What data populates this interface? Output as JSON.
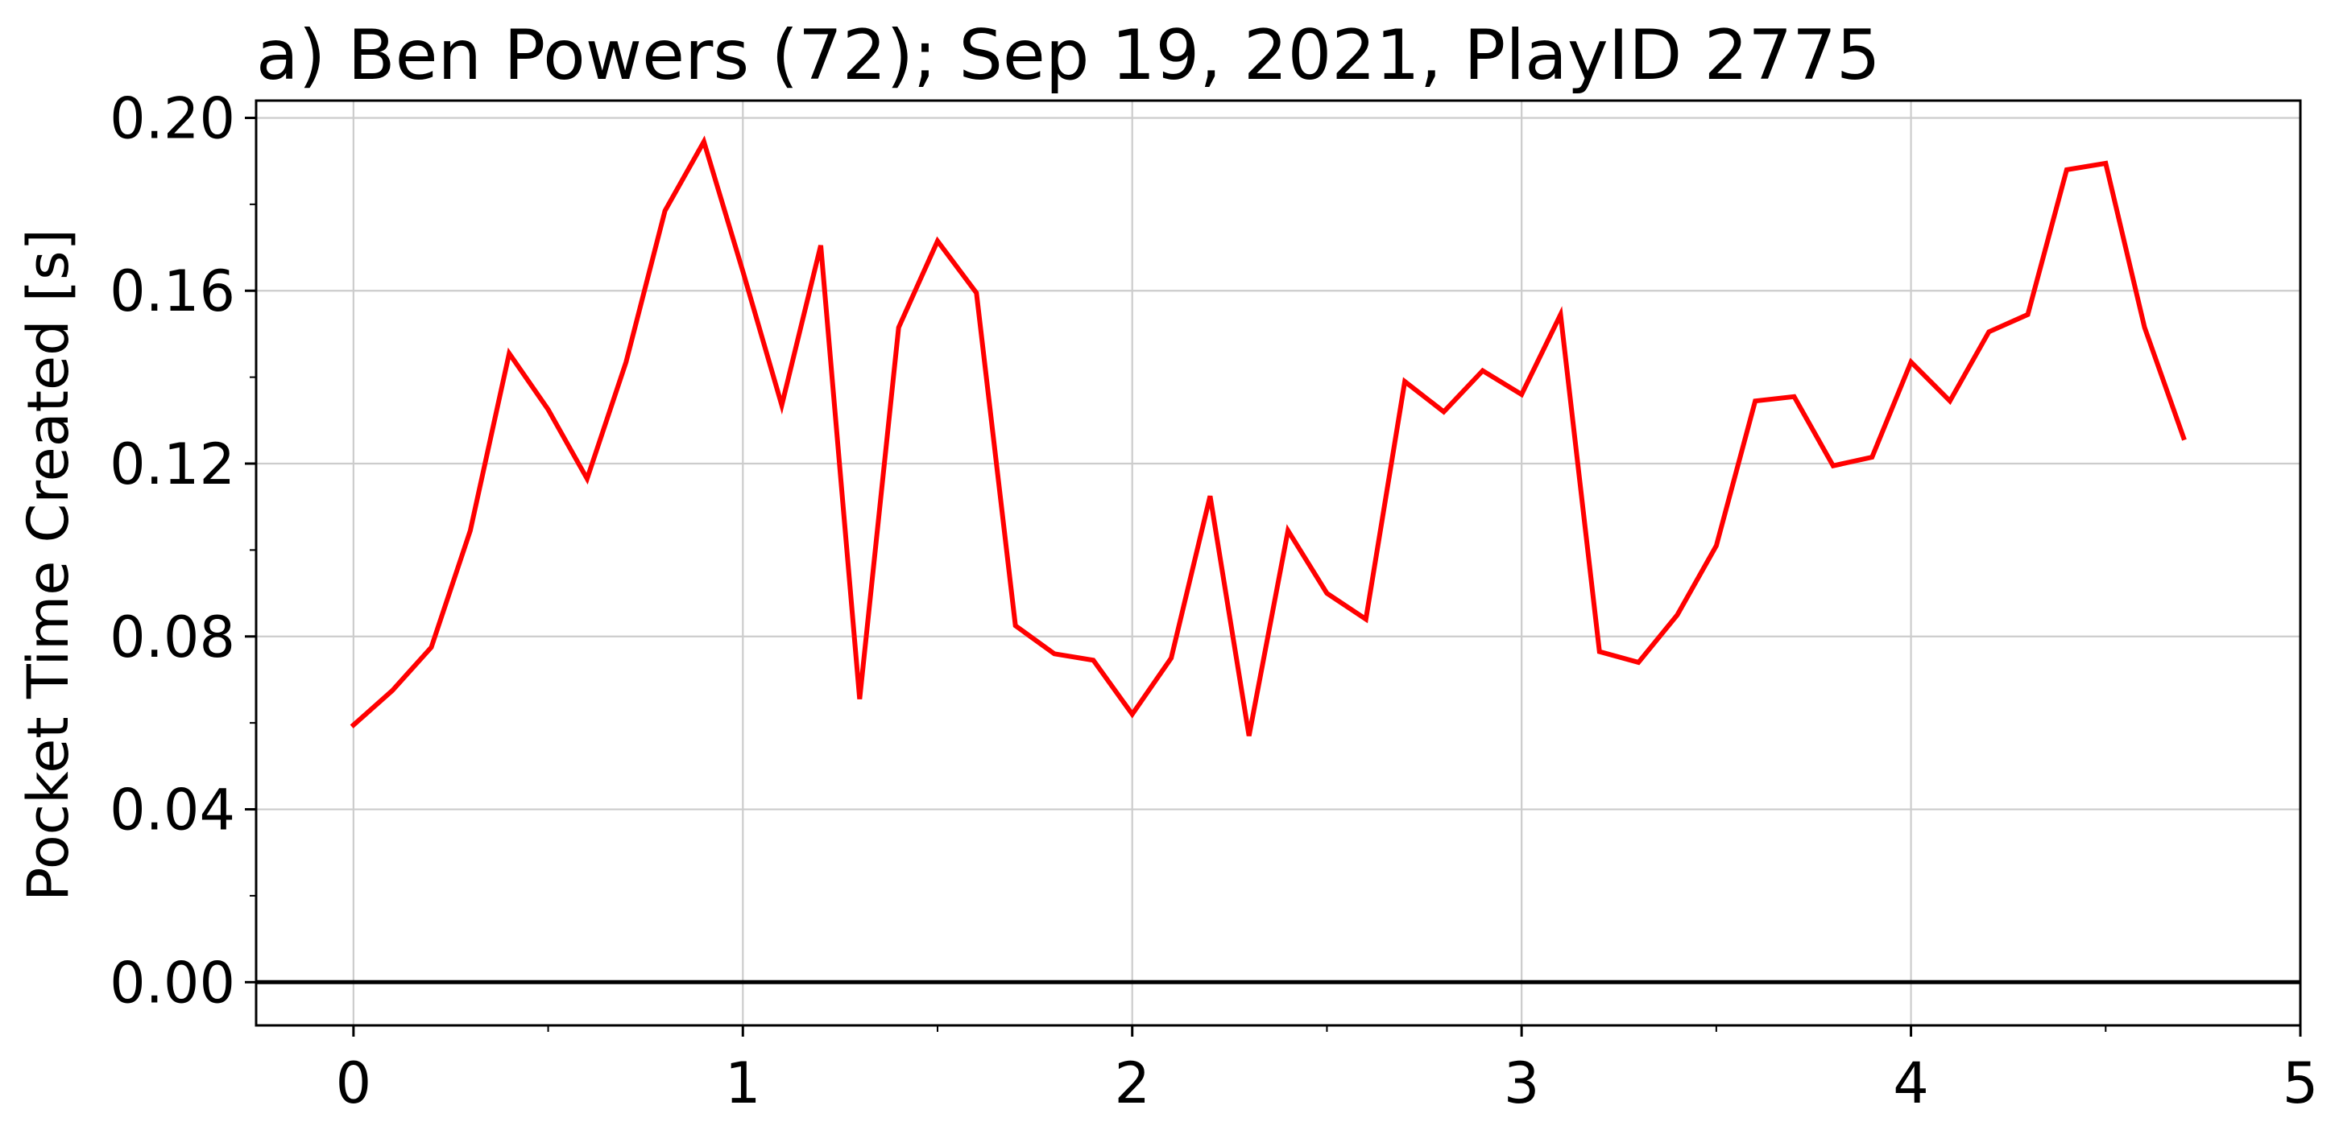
{
  "chart_data": {
    "type": "line",
    "title": "a) Ben Powers (72); Sep 19, 2021, PlayID 2775",
    "xlabel": "",
    "ylabel": "Pocket Time Created [s]",
    "xlim": [
      -0.25,
      5
    ],
    "ylim": [
      -0.01,
      0.204
    ],
    "x_ticks": [
      0,
      1,
      2,
      3,
      4,
      5
    ],
    "x_tick_labels": [
      "0",
      "1",
      "2",
      "3",
      "4",
      "5"
    ],
    "y_ticks": [
      0.0,
      0.04,
      0.08,
      0.12,
      0.16,
      0.2
    ],
    "y_tick_labels": [
      "0.00",
      "0.04",
      "0.08",
      "0.12",
      "0.16",
      "0.20"
    ],
    "grid": true,
    "reference_line_y": 0,
    "series": [
      {
        "color": "#ff0000",
        "x": [
          0.0,
          0.1,
          0.2,
          0.3,
          0.4,
          0.5,
          0.6,
          0.7,
          0.8,
          0.9,
          1.0,
          1.1,
          1.2,
          1.3,
          1.4,
          1.5,
          1.6,
          1.7,
          1.8,
          1.9,
          2.0,
          2.1,
          2.2,
          2.3,
          2.4,
          2.5,
          2.6,
          2.7,
          2.8,
          2.9,
          3.0,
          3.1,
          3.2,
          3.3,
          3.4,
          3.5,
          3.6,
          3.7,
          3.8,
          3.9,
          4.0,
          4.1,
          4.2,
          4.3,
          4.4,
          4.5,
          4.6,
          4.7
        ],
        "y": [
          0.0595,
          0.0675,
          0.0775,
          0.1045,
          0.1455,
          0.1325,
          0.1165,
          0.1435,
          0.1785,
          0.1945,
          0.1645,
          0.1335,
          0.1705,
          0.0655,
          0.1515,
          0.1715,
          0.1595,
          0.0825,
          0.076,
          0.0745,
          0.062,
          0.075,
          0.1125,
          0.057,
          0.1045,
          0.09,
          0.084,
          0.139,
          0.132,
          0.1415,
          0.136,
          0.1545,
          0.0765,
          0.074,
          0.085,
          0.101,
          0.1345,
          0.1355,
          0.1195,
          0.1215,
          0.1435,
          0.1345,
          0.1505,
          0.1545,
          0.188,
          0.1895,
          0.1515,
          0.126
        ]
      }
    ],
    "colors": {
      "series": "#ff0000",
      "grid": "#cccccc",
      "axes": "#000000",
      "zero_line": "#000000"
    }
  }
}
